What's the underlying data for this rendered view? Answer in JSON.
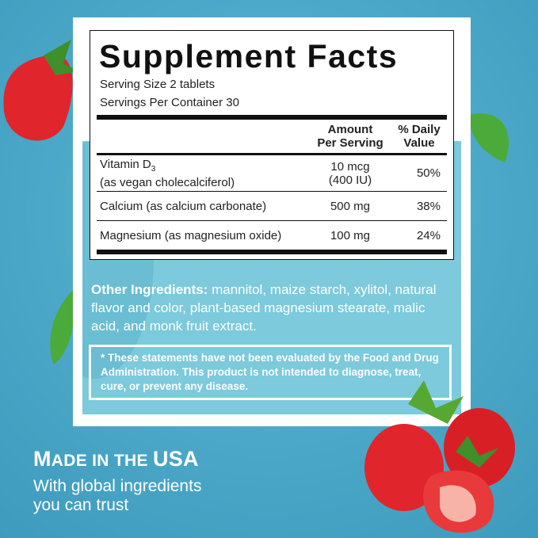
{
  "facts": {
    "title": "Supplement Facts",
    "serving_size": "Serving Size 2 tablets",
    "servings_per_container": "Servings Per Container 30",
    "col_amount_1": "Amount",
    "col_amount_2": "Per Serving",
    "col_dv_1": "% Daily",
    "col_dv_2": "Value",
    "rows": [
      {
        "name": "Vitamin D",
        "sub": "3",
        "name2": "(as vegan cholecalciferol)",
        "amount": "10 mcg",
        "amount2": "(400 IU)",
        "dv": "50%"
      },
      {
        "name": "Calcium (as calcium carbonate)",
        "amount": "500 mg",
        "dv": "38%"
      },
      {
        "name": "Magnesium (as magnesium oxide)",
        "amount": "100 mg",
        "dv": "24%"
      }
    ]
  },
  "other_ingredients": {
    "label": "Other Ingredients:",
    "text": " mannitol, maize starch, xylitol, natural flavor and color, plant-based magnesium stearate, malic acid, and monk fruit extract."
  },
  "disclaimer": "* These statements have not been evaluated by the Food and Drug Administration. This product is not intended to diagnose, treat, cure, or prevent any disease.",
  "made_in": {
    "title_big1": "M",
    "title_small1": "ADE IN THE ",
    "title_big2": "USA",
    "subtitle_1": "With global ingredients",
    "subtitle_2": "you can trust"
  },
  "colors": {
    "background": "#4aa7c7",
    "inner_panel": "#7ccadc",
    "strawberry": "#e0262c"
  }
}
